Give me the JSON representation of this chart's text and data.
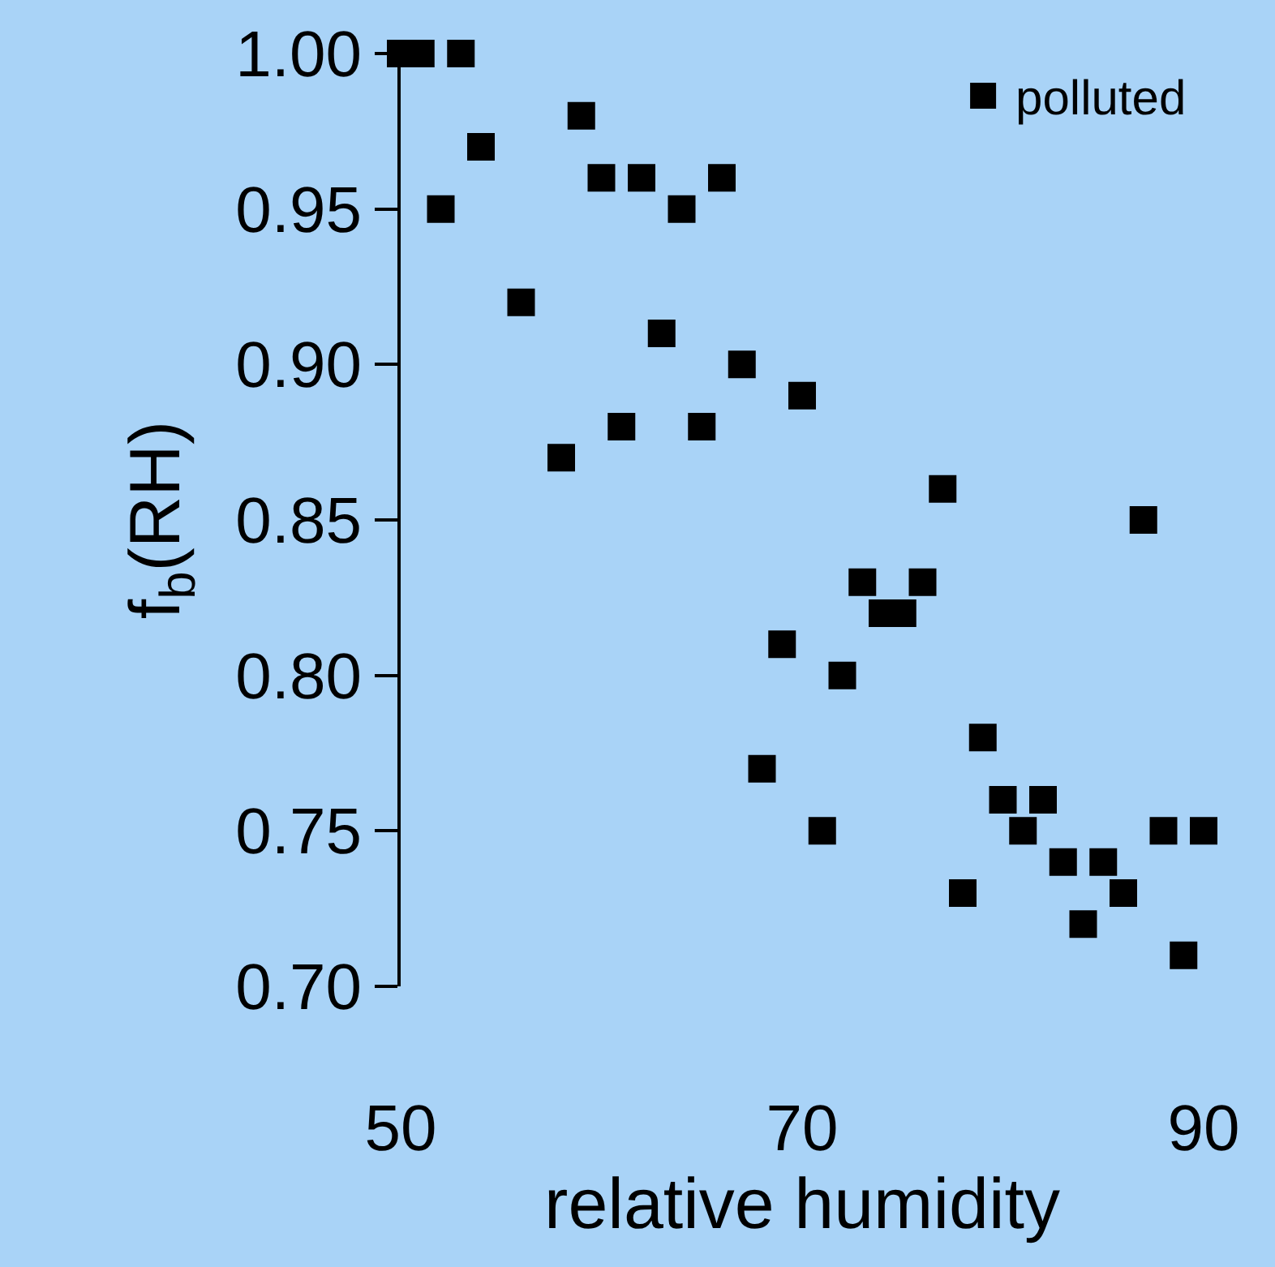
{
  "chart_data": {
    "type": "scatter",
    "xlabel": "relative humidity",
    "ylabel": "f$_{b}$(RH)",
    "x": [
      50,
      51,
      53,
      52,
      54,
      56,
      58,
      59,
      60,
      61,
      62,
      63,
      64,
      65,
      66,
      67,
      68,
      69,
      70,
      71,
      72,
      73,
      74,
      75,
      76,
      77,
      78,
      79,
      80,
      81,
      82,
      83,
      84,
      85,
      86,
      87,
      88,
      89,
      90
    ],
    "series": [
      {
        "name": "polluted",
        "color": "#000000",
        "values": [
          1.0,
          1.0,
          1.0,
          0.95,
          0.97,
          0.92,
          0.87,
          0.98,
          0.96,
          0.88,
          0.96,
          0.91,
          0.95,
          0.88,
          0.96,
          0.9,
          0.77,
          0.81,
          0.89,
          0.75,
          0.8,
          0.83,
          0.82,
          0.82,
          0.83,
          0.86,
          0.73,
          0.78,
          0.76,
          0.75,
          0.76,
          0.74,
          0.72,
          0.74,
          0.73,
          0.85,
          0.75,
          0.71,
          0.75
        ]
      }
    ],
    "xlim": [
      50,
      90
    ],
    "xticks": [
      50,
      70,
      90
    ],
    "ylim": [
      0.7,
      1.0
    ],
    "yticks": [
      {
        "value": 0.7,
        "label": "0.70"
      },
      {
        "value": 0.75,
        "label": "0.75"
      },
      {
        "value": 0.8,
        "label": "0.80"
      },
      {
        "value": 0.85,
        "label": "0.85"
      },
      {
        "value": 0.9,
        "label": "0.90"
      },
      {
        "value": 0.95,
        "label": "0.95"
      },
      {
        "value": 1.0,
        "label": "1.00"
      }
    ],
    "marker": "square",
    "legend": "top right",
    "grid": false
  }
}
